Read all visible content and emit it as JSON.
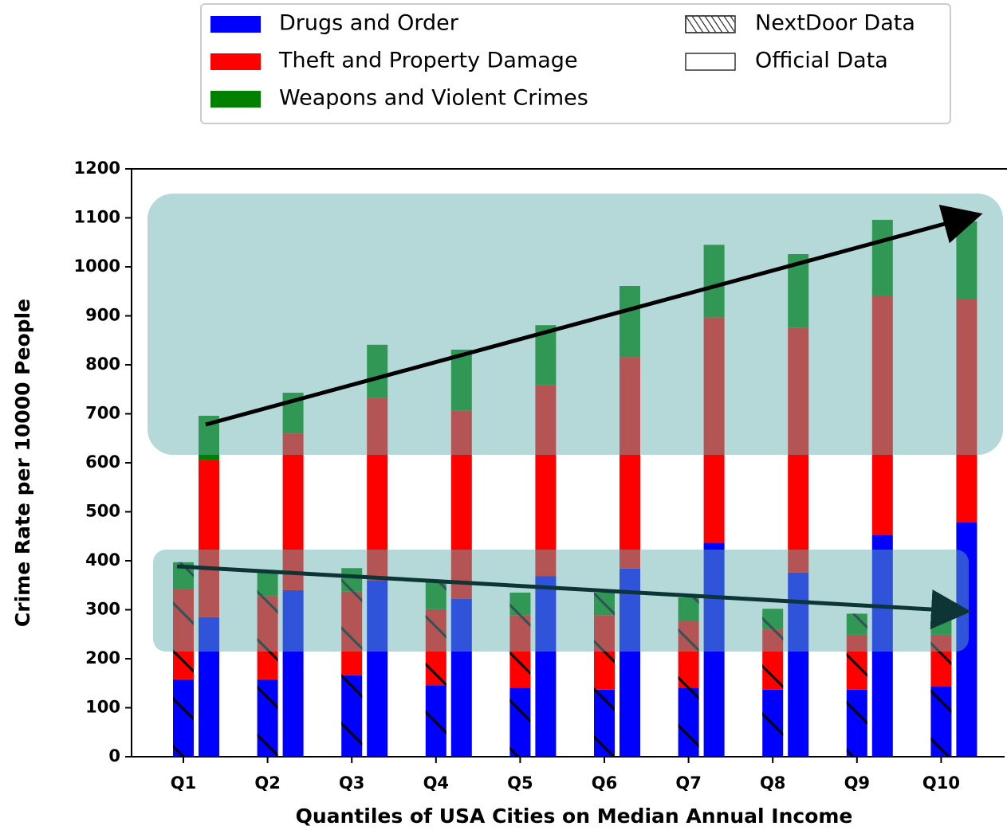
{
  "chart_data": {
    "type": "grouped-stacked-bar",
    "x_label": "Quantiles of USA Cities on Median Annual Income",
    "y_label": "Crime Rate per 10000 People",
    "categories": [
      "Q1",
      "Q2",
      "Q3",
      "Q4",
      "Q5",
      "Q6",
      "Q7",
      "Q8",
      "Q9",
      "Q10"
    ],
    "ylim": [
      0,
      1200
    ],
    "yticks": [
      0,
      100,
      200,
      300,
      400,
      500,
      600,
      700,
      800,
      900,
      1000,
      1100,
      1200
    ],
    "series": [
      {
        "name": "Drugs and Order",
        "color": "#0000ff"
      },
      {
        "name": "Theft and Property Damage",
        "color": "#ff0000"
      },
      {
        "name": "Weapons and Violent Crimes",
        "color": "#008000"
      }
    ],
    "groups": [
      {
        "name": "NextDoor Data",
        "hatch": true,
        "series": [
          {
            "values": [
              158,
              158,
              166,
              146,
              141,
              137,
              141,
              137,
              137,
              143
            ]
          },
          {
            "values": [
              185,
              170,
              171,
              155,
              148,
              152,
              137,
              123,
              112,
              106
            ]
          },
          {
            "values": [
              54,
              49,
              48,
              57,
              46,
              46,
              47,
              42,
              43,
              43
            ]
          }
        ]
      },
      {
        "name": "Official Data",
        "hatch": false,
        "series": [
          {
            "values": [
              285,
              340,
              360,
              322,
              369,
              384,
              437,
              376,
              452,
              478
            ]
          },
          {
            "values": [
              320,
              320,
              372,
              385,
              389,
              432,
              460,
              500,
              488,
              457
            ]
          },
          {
            "values": [
              91,
              83,
              109,
              124,
              123,
              145,
              148,
              150,
              156,
              158
            ]
          }
        ]
      }
    ]
  }
}
